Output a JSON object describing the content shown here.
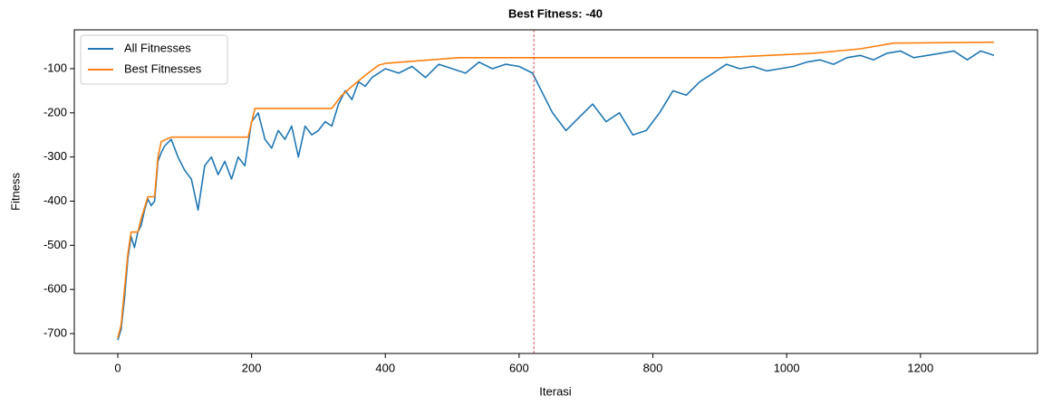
{
  "chart_data": {
    "type": "line",
    "title": "Best Fitness: -40",
    "x_label": "Iterasi",
    "y_label": "Fitness",
    "xlim": [
      -65,
      1375
    ],
    "ylim": [
      -745,
      -12
    ],
    "xticks": [
      0,
      200,
      400,
      600,
      800,
      1000,
      1200
    ],
    "yticks": [
      -700,
      -600,
      -500,
      -400,
      -300,
      -200,
      -100
    ],
    "legend": "upper left",
    "vline": 622,
    "vline_color": "#d62728",
    "series": [
      {
        "name": "All Fitnesses",
        "color": "#1f77b4",
        "x": [
          0,
          5,
          10,
          15,
          20,
          25,
          30,
          35,
          40,
          45,
          50,
          55,
          60,
          65,
          70,
          80,
          90,
          100,
          110,
          120,
          130,
          140,
          150,
          160,
          170,
          180,
          190,
          200,
          210,
          220,
          230,
          240,
          250,
          260,
          270,
          280,
          290,
          300,
          310,
          320,
          330,
          340,
          350,
          360,
          370,
          380,
          390,
          400,
          420,
          440,
          460,
          480,
          500,
          520,
          540,
          560,
          580,
          600,
          620,
          630,
          650,
          670,
          690,
          710,
          730,
          750,
          770,
          790,
          810,
          830,
          850,
          870,
          890,
          910,
          930,
          950,
          970,
          990,
          1010,
          1030,
          1050,
          1070,
          1090,
          1110,
          1130,
          1150,
          1170,
          1190,
          1210,
          1230,
          1250,
          1270,
          1290,
          1310
        ],
        "values": [
          -715,
          -690,
          -620,
          -530,
          -480,
          -505,
          -470,
          -455,
          -420,
          -395,
          -410,
          -400,
          -310,
          -290,
          -275,
          -260,
          -300,
          -330,
          -350,
          -420,
          -320,
          -300,
          -340,
          -310,
          -350,
          -300,
          -320,
          -220,
          -200,
          -260,
          -280,
          -240,
          -260,
          -230,
          -300,
          -230,
          -250,
          -240,
          -220,
          -230,
          -180,
          -150,
          -170,
          -130,
          -140,
          -120,
          -110,
          -100,
          -110,
          -95,
          -120,
          -90,
          -100,
          -110,
          -85,
          -100,
          -90,
          -95,
          -110,
          -140,
          -200,
          -240,
          -210,
          -180,
          -220,
          -200,
          -250,
          -240,
          -200,
          -150,
          -160,
          -130,
          -110,
          -90,
          -100,
          -95,
          -105,
          -100,
          -95,
          -85,
          -80,
          -90,
          -75,
          -70,
          -80,
          -65,
          -60,
          -75,
          -70,
          -65,
          -60,
          -80,
          -60,
          -70
        ]
      },
      {
        "name": "Best Fitnesses",
        "color": "#ff7f0e",
        "x": [
          0,
          5,
          10,
          15,
          20,
          30,
          35,
          45,
          55,
          60,
          65,
          80,
          195,
          205,
          320,
          335,
          350,
          370,
          390,
          400,
          510,
          900,
          1040,
          1110,
          1160,
          1310
        ],
        "values": [
          -710,
          -680,
          -600,
          -520,
          -470,
          -470,
          -440,
          -390,
          -390,
          -300,
          -265,
          -255,
          -255,
          -190,
          -190,
          -160,
          -140,
          -115,
          -92,
          -88,
          -75,
          -75,
          -65,
          -55,
          -42,
          -40
        ]
      }
    ]
  }
}
